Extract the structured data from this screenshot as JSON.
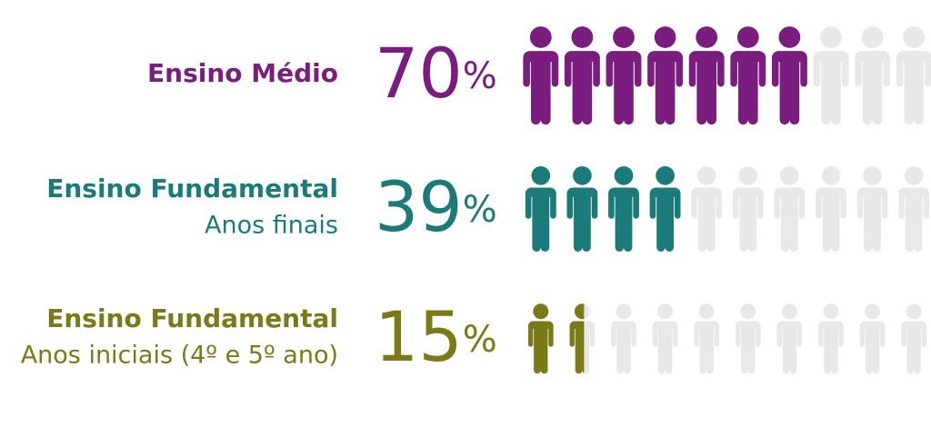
{
  "chart_data": {
    "type": "pictogram",
    "categories": [
      "Ensino Médio",
      "Ensino Fundamental",
      "Ensino Fundamental"
    ],
    "sublabels": [
      null,
      "Anos finais",
      "Anos iniciais (4º e 5º ano)"
    ],
    "values": [
      70,
      39,
      15
    ],
    "value_labels": [
      "70%",
      "39%",
      "15%"
    ],
    "colors": [
      "#7b1c7f",
      "#1b7b7b",
      "#7b7a16"
    ],
    "xlim": [
      0,
      100
    ]
  }
}
